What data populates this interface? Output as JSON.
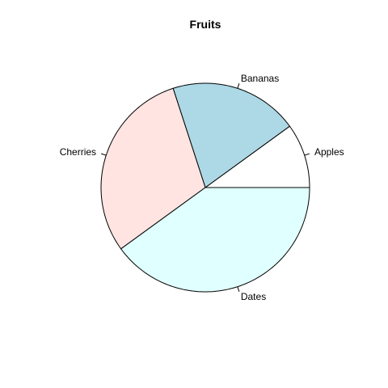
{
  "chart_data": {
    "type": "pie",
    "title": "Fruits",
    "slices": [
      {
        "label": "Apples",
        "value": 10,
        "color": "#ffffff"
      },
      {
        "label": "Bananas",
        "value": 20,
        "color": "#add8e6"
      },
      {
        "label": "Cherries",
        "value": 30,
        "color": "#ffe4e1"
      },
      {
        "label": "Dates",
        "value": 40,
        "color": "#e0ffff"
      }
    ],
    "start_angle_degrees": 0,
    "direction": "counterclockwise",
    "border_color": "#000000"
  }
}
